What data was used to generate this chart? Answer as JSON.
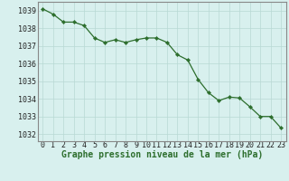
{
  "x": [
    0,
    1,
    2,
    3,
    4,
    5,
    6,
    7,
    8,
    9,
    10,
    11,
    12,
    13,
    14,
    15,
    16,
    17,
    18,
    19,
    20,
    21,
    22,
    23
  ],
  "y": [
    1039.1,
    1038.8,
    1038.35,
    1038.35,
    1038.15,
    1037.45,
    1037.2,
    1037.35,
    1037.2,
    1037.35,
    1037.45,
    1037.45,
    1037.2,
    1036.5,
    1036.2,
    1035.1,
    1034.35,
    1033.9,
    1034.1,
    1034.05,
    1033.55,
    1033.0,
    1033.0,
    1032.35
  ],
  "line_color": "#2d6e2d",
  "marker_color": "#2d6e2d",
  "bg_color": "#d8f0ee",
  "grid_color": "#b8d8d4",
  "border_color": "#888888",
  "xlabel": "Graphe pression niveau de la mer (hPa)",
  "xlabel_color": "#2d6e2d",
  "ylim_min": 1031.6,
  "ylim_max": 1039.5,
  "xlabel_fontsize": 7,
  "tick_fontsize": 6
}
